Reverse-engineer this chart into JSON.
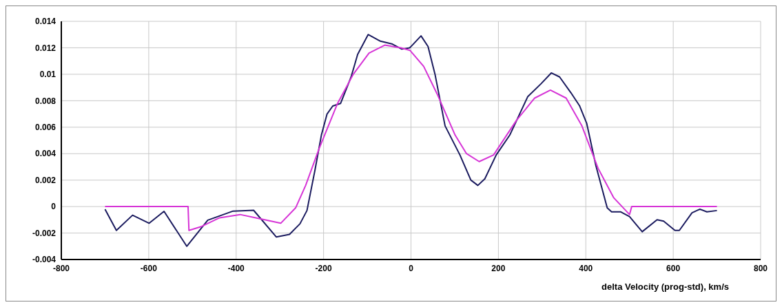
{
  "chart_data": {
    "type": "line",
    "xlabel": "delta Velocity (prog-std), km/s",
    "xlim": [
      -800,
      800
    ],
    "xticks": [
      -800,
      -600,
      -400,
      -200,
      0,
      200,
      400,
      600,
      800
    ],
    "ylim": [
      -0.004,
      0.014
    ],
    "yticks": [
      -0.004,
      -0.002,
      0,
      0.002,
      0.004,
      0.006,
      0.008,
      0.01,
      0.012,
      0.014
    ],
    "grid": true,
    "legend": false,
    "marker": "none",
    "line_style": "solid",
    "series": [
      {
        "color": "#1a1a5e",
        "x": [
          -700,
          -674,
          -637,
          -599,
          -565,
          -513,
          -465,
          -407,
          -360,
          -308,
          -278,
          -254,
          -238,
          -220,
          -205,
          -192,
          -179,
          -161,
          -137,
          -122,
          -98,
          -70,
          -44,
          -21,
          -3,
          3,
          23,
          39,
          55,
          78,
          112,
          137,
          153,
          169,
          195,
          226,
          267,
          298,
          321,
          340,
          366,
          386,
          402,
          423,
          449,
          459,
          480,
          500,
          529,
          563,
          578,
          604,
          614,
          643,
          661,
          677,
          700
        ],
        "values": [
          -0.0002,
          -0.0018,
          -0.00065,
          -0.00126,
          -0.00036,
          -0.003,
          -0.00103,
          -0.00034,
          -0.00028,
          -0.0023,
          -0.0021,
          -0.0013,
          -0.0003,
          0.0027,
          0.0054,
          0.007,
          0.0076,
          0.0078,
          0.0098,
          0.0115,
          0.013,
          0.0125,
          0.0123,
          0.0119,
          0.012,
          0.0122,
          0.0129,
          0.0121,
          0.01,
          0.0061,
          0.0039,
          0.002,
          0.0016,
          0.0021,
          0.0039,
          0.0054,
          0.0083,
          0.0093,
          0.0101,
          0.0098,
          0.0086,
          0.0076,
          0.0063,
          0.0031,
          -0.0001,
          -0.0004,
          -0.0004,
          -0.00075,
          -0.0019,
          -0.001,
          -0.0011,
          -0.0018,
          -0.0018,
          -0.00047,
          -0.0002,
          -0.0004,
          -0.0003
        ]
      },
      {
        "color": "#d633d6",
        "x": [
          -700,
          -510,
          -508,
          -479,
          -438,
          -391,
          -355,
          -298,
          -264,
          -241,
          -210,
          -168,
          -132,
          -96,
          -60,
          -23,
          -2,
          29,
          60,
          101,
          127,
          156,
          189,
          241,
          283,
          319,
          355,
          391,
          428,
          464,
          500,
          505,
          700
        ],
        "values": [
          0,
          0,
          -0.0018,
          -0.0015,
          -0.00085,
          -0.0006,
          -0.00085,
          -0.00126,
          -0.0001,
          0.0016,
          0.0044,
          0.0078,
          0.01,
          0.0116,
          0.0122,
          0.012,
          0.0118,
          0.0106,
          0.0085,
          0.0054,
          0.004,
          0.0034,
          0.0039,
          0.0065,
          0.0082,
          0.0088,
          0.0082,
          0.0061,
          0.0029,
          0.00066,
          -0.0006,
          0,
          0
        ]
      }
    ]
  }
}
